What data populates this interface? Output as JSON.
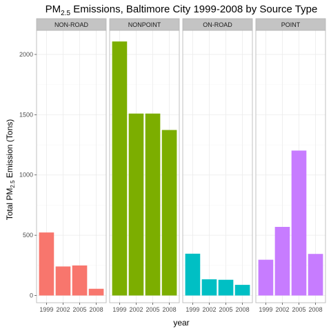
{
  "chart_data": {
    "type": "bar",
    "title": {
      "main": "PM",
      "sub": "2.5",
      "rest": " Emissions, Baltimore City 1999-2008 by Source Type"
    },
    "xlabel": "year",
    "ylabel": {
      "main": "Total PM",
      "sub": "2.5",
      "rest": " Emission (Tons)"
    },
    "categories": [
      "1999",
      "2002",
      "2005",
      "2008"
    ],
    "ylim": [
      -60,
      2200
    ],
    "yticks": [
      0,
      500,
      1000,
      1500,
      2000
    ],
    "facets": [
      {
        "name": "NON-ROAD",
        "color": "#F8766D",
        "values": [
          522.94,
          240.85,
          248.93,
          55.82
        ]
      },
      {
        "name": "NONPOINT",
        "color": "#7CAE00",
        "values": [
          2107.63,
          1509.5,
          1509.5,
          1373.21
        ]
      },
      {
        "name": "ON-ROAD",
        "color": "#00BFC4",
        "values": [
          346.82,
          134.31,
          130.43,
          88.28
        ]
      },
      {
        "name": "POINT",
        "color": "#C77CFF",
        "values": [
          296.8,
          569.26,
          1202.49,
          344.98
        ]
      }
    ]
  }
}
